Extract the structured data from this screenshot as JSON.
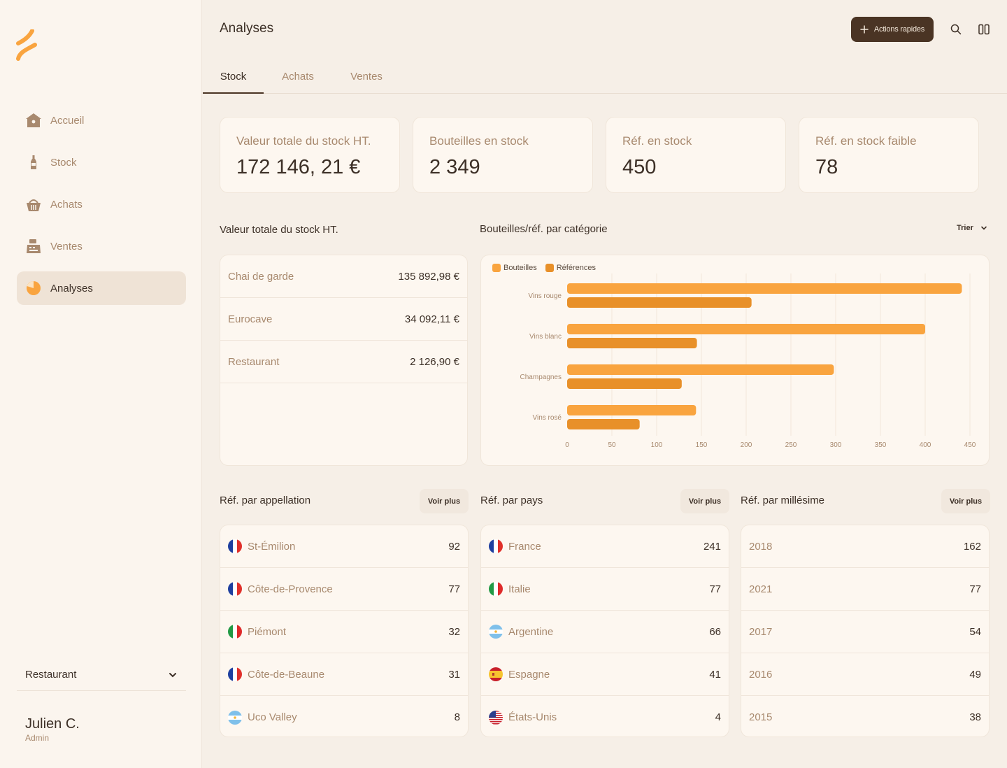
{
  "sidebar": {
    "items": [
      {
        "label": "Accueil",
        "icon": "home-icon"
      },
      {
        "label": "Stock",
        "icon": "bottle-icon"
      },
      {
        "label": "Achats",
        "icon": "basket-icon"
      },
      {
        "label": "Ventes",
        "icon": "register-icon"
      },
      {
        "label": "Analyses",
        "icon": "pie-chart-icon"
      }
    ],
    "venue": "Restaurant",
    "user_name": "Julien C.",
    "user_role": "Admin"
  },
  "header": {
    "title": "Analyses",
    "quick_actions": "Actions rapides"
  },
  "tabs": [
    "Stock",
    "Achats",
    "Ventes"
  ],
  "kpis": [
    {
      "label": "Valeur totale du stock HT.",
      "value": "172 146, 21 €"
    },
    {
      "label": "Bouteilles en stock",
      "value": "2 349"
    },
    {
      "label": "Réf. en stock",
      "value": "450"
    },
    {
      "label": "Réf. en stock faible",
      "value": "78"
    }
  ],
  "stock_value": {
    "title": "Valeur totale du stock HT.",
    "rows": [
      {
        "label": "Chai de garde",
        "value": "135 892,98 €"
      },
      {
        "label": "Eurocave",
        "value": "34 092,11 €"
      },
      {
        "label": "Restaurant",
        "value": "2 126,90 €"
      }
    ]
  },
  "category_chart": {
    "title": "Bouteilles/réf. par catégorie",
    "sort_label": "Trier"
  },
  "chart_data": {
    "type": "bar",
    "orientation": "horizontal",
    "categories": [
      "Vins rouge",
      "Vins blanc",
      "Champagnes",
      "Vins rosé"
    ],
    "series": [
      {
        "name": "Bouteilles",
        "values": [
          441,
          400,
          298,
          144
        ],
        "color": "#f9a43f"
      },
      {
        "name": "Références",
        "values": [
          206,
          145,
          128,
          81
        ],
        "color": "#e89029"
      }
    ],
    "xlim": [
      0,
      450
    ],
    "xticks": [
      "0",
      "50",
      "100",
      "150",
      "200",
      "250",
      "300",
      "350",
      "400",
      "450"
    ],
    "legend": "top-left"
  },
  "voir_plus": "Voir plus",
  "appellations": {
    "title": "Réf. par appellation",
    "rows": [
      {
        "label": "St-Émilion",
        "value": "92",
        "flag": "fr"
      },
      {
        "label": "Côte-de-Provence",
        "value": "77",
        "flag": "fr"
      },
      {
        "label": "Piémont",
        "value": "32",
        "flag": "it"
      },
      {
        "label": "Côte-de-Beaune",
        "value": "31",
        "flag": "fr"
      },
      {
        "label": "Uco Valley",
        "value": "8",
        "flag": "ar"
      }
    ]
  },
  "countries": {
    "title": "Réf. par pays",
    "rows": [
      {
        "label": "France",
        "value": "241",
        "flag": "fr"
      },
      {
        "label": "Italie",
        "value": "77",
        "flag": "it"
      },
      {
        "label": "Argentine",
        "value": "66",
        "flag": "ar"
      },
      {
        "label": "Espagne",
        "value": "41",
        "flag": "es"
      },
      {
        "label": "États-Unis",
        "value": "4",
        "flag": "us"
      }
    ]
  },
  "vintages": {
    "title": "Réf. par millésime",
    "rows": [
      {
        "label": "2018",
        "value": "162"
      },
      {
        "label": "2021",
        "value": "77"
      },
      {
        "label": "2017",
        "value": "54"
      },
      {
        "label": "2016",
        "value": "49"
      },
      {
        "label": "2015",
        "value": "38"
      }
    ]
  }
}
